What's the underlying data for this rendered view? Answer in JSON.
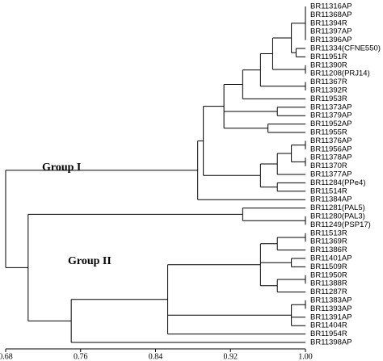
{
  "chart_data": {
    "type": "dendrogram",
    "annotations": [
      "Group I",
      "Group II"
    ],
    "xlim": [
      0.68,
      1.0
    ],
    "xticks": [
      0.68,
      0.76,
      0.84,
      0.92,
      {
        "value": 1.0,
        "label": "1.00"
      }
    ],
    "color": "#000000",
    "tree": {
      "height": 0.68,
      "children": [
        {
          "height": 0.885,
          "children": [
            {
              "height": 0.891,
              "children": [
                {
                  "height": 0.913,
                  "children": [
                    {
                      "height": 0.933,
                      "children": [
                        {
                          "height": 0.952,
                          "children": [
                            {
                              "height": 0.965,
                              "children": [
                                {
                                  "height": 0.985,
                                  "children": [
                                    {
                                      "height": 1.0,
                                      "children": [
                                        "BR11316AP",
                                        "BR11368AP",
                                        "BR11394R",
                                        "BR11397AP",
                                        "BR11396AP"
                                      ]
                                    },
                                    {
                                      "height": 0.99,
                                      "children": [
                                        "BR11334(CFNE550)",
                                        "BR11951R"
                                      ]
                                    }
                                  ]
                                },
                                {
                                  "height": 1.0,
                                  "children": [
                                    "BR11390R",
                                    "BR11208(PRJ14)"
                                  ]
                                }
                              ]
                            },
                            {
                              "height": 1.0,
                              "children": [
                                "BR11367R",
                                "BR11392R"
                              ]
                            }
                          ]
                        },
                        "BR11953R"
                      ]
                    },
                    {
                      "height": 0.97,
                      "children": [
                        "BR11373AP",
                        "BR11379AP"
                      ]
                    },
                    {
                      "height": 0.96,
                      "children": [
                        "BR11952AP",
                        "BR11955R"
                      ]
                    }
                  ]
                },
                {
                  "height": 0.952,
                  "children": [
                    {
                      "height": 0.97,
                      "children": [
                        {
                          "height": 0.985,
                          "children": [
                            {
                              "height": 1.0,
                              "children": [
                                "BR11376AP",
                                "BR11956AP"
                              ]
                            },
                            {
                              "height": 1.0,
                              "children": [
                                "BR11378AP",
                                "BR11370R"
                              ]
                            }
                          ]
                        },
                        "BR11377AP"
                      ]
                    },
                    {
                      "height": 0.97,
                      "children": [
                        "BR11284(PPe4)",
                        "BR11514R"
                      ]
                    }
                  ]
                }
              ]
            },
            "BR11384AP"
          ]
        },
        {
          "height": 0.704,
          "children": [
            {
              "height": 0.933,
              "children": [
                "BR11281(PAL5)",
                {
                  "height": 1.0,
                  "children": [
                    "BR11280(PAL3)",
                    "BR11249(PSP17)"
                  ]
                }
              ]
            },
            {
              "height": 0.75,
              "children": [
                {
                  "height": 0.853,
                  "children": [
                    {
                      "height": 0.952,
                      "children": [
                        {
                          "height": 0.97,
                          "children": [
                            {
                              "height": 1.0,
                              "children": [
                                "BR11513R",
                                "BR11369R"
                              ]
                            },
                            "BR11386R"
                          ]
                        },
                        {
                          "height": 0.985,
                          "children": [
                            "BR11401AP",
                            "BR11509R"
                          ]
                        },
                        {
                          "height": 0.97,
                          "children": [
                            {
                              "height": 1.0,
                              "children": [
                                "BR11950R",
                                "BR11388R"
                              ]
                            },
                            "BR11287R"
                          ]
                        }
                      ]
                    },
                    {
                      "height": 0.985,
                      "children": [
                        {
                          "height": 1.0,
                          "children": [
                            "BR11383AP",
                            "BR11393AP"
                          ]
                        },
                        "BR11391AP",
                        "BR11404R"
                      ]
                    },
                    "BR11954R"
                  ]
                },
                "BR11398AP"
              ]
            }
          ]
        }
      ]
    }
  }
}
